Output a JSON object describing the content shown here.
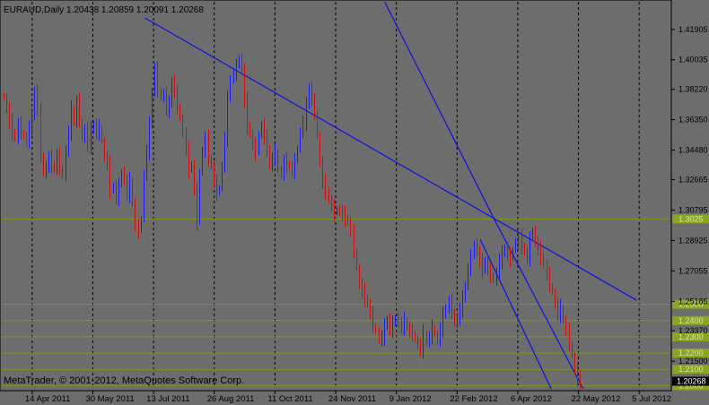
{
  "chart_data": {
    "type": "line",
    "header": "EURAUD,Daily  1.20438  1.20859  1.20091  1.20268",
    "symbol": "EURAUD",
    "timeframe": "Daily",
    "ohlc": {
      "open": 1.20438,
      "high": 1.20859,
      "low": 1.20091,
      "close": 1.20268
    },
    "copyright": "MetaTrader, © 2001-2012, MetaQuotes Software Corp.",
    "x_tick_labels": [
      "14 Apr 2011",
      "30 May 2011",
      "13 Jul 2011",
      "26 Aug 2011",
      "11 Oct 2011",
      "24 Nov 2011",
      "9 Jan 2012",
      "22 Feb 2012",
      "6 Apr 2012",
      "22 May 2012",
      "5 Jul 2012"
    ],
    "y_tick_labels": [
      "1.41905",
      "1.40035",
      "1.38220",
      "1.36350",
      "1.34480",
      "1.32665",
      "1.30795",
      "1.28925",
      "1.27055",
      "1.25185",
      "1.23370",
      "1.21500"
    ],
    "horizontal_levels": [
      1.3025,
      1.25,
      1.24,
      1.23,
      1.22,
      1.21,
      1.2
    ],
    "level_labels": [
      "1.3025",
      "1.2500",
      "1.2400",
      "1.2300",
      "1.2200",
      "1.2100",
      "1.2000"
    ],
    "current_price": "1.20268",
    "ylim": [
      1.198,
      1.436
    ],
    "series": [
      {
        "values": [
          1.377,
          1.37,
          1.362,
          1.356,
          1.352,
          1.361,
          1.356,
          1.353,
          1.35,
          1.359,
          1.365,
          1.382,
          1.369,
          1.342,
          1.33,
          1.335,
          1.34,
          1.336,
          1.333,
          1.342,
          1.334,
          1.328,
          1.345,
          1.356,
          1.37,
          1.362,
          1.375,
          1.363,
          1.352,
          1.358,
          1.348,
          1.357,
          1.361,
          1.355,
          1.359,
          1.35,
          1.34,
          1.336,
          1.32,
          1.323,
          1.315,
          1.323,
          1.332,
          1.326,
          1.318,
          1.326,
          1.312,
          1.298,
          1.295,
          1.303,
          1.33,
          1.344,
          1.36,
          1.381,
          1.395,
          1.382,
          1.377,
          1.38,
          1.37,
          1.373,
          1.388,
          1.38,
          1.372,
          1.364,
          1.355,
          1.345,
          1.333,
          1.336,
          1.32,
          1.3,
          1.332,
          1.344,
          1.352,
          1.34,
          1.335,
          1.325,
          1.318,
          1.322,
          1.335,
          1.352,
          1.376,
          1.389,
          1.392,
          1.396,
          1.402,
          1.394,
          1.375,
          1.36,
          1.354,
          1.348,
          1.343,
          1.355,
          1.36,
          1.352,
          1.346,
          1.335,
          1.34,
          1.344,
          1.332,
          1.33,
          1.338,
          1.336,
          1.335,
          1.332,
          1.338,
          1.346,
          1.356,
          1.362,
          1.372,
          1.384,
          1.375,
          1.368,
          1.353,
          1.337,
          1.325,
          1.32,
          1.314,
          1.31,
          1.306,
          1.308,
          1.307,
          1.305,
          1.303,
          1.3,
          1.295,
          1.283,
          1.272,
          1.262,
          1.258,
          1.254,
          1.25,
          1.244,
          1.237,
          1.233,
          1.228,
          1.23,
          1.236,
          1.241,
          1.234,
          1.238,
          1.242,
          1.238,
          1.236,
          1.24,
          1.236,
          1.233,
          1.232,
          1.228,
          1.225,
          1.222,
          1.232,
          1.227,
          1.23,
          1.236,
          1.231,
          1.228,
          1.235,
          1.243,
          1.248,
          1.252,
          1.246,
          1.238,
          1.241,
          1.247,
          1.253,
          1.262,
          1.272,
          1.279,
          1.288,
          1.282,
          1.276,
          1.271,
          1.277,
          1.271,
          1.268,
          1.264,
          1.27,
          1.277,
          1.281,
          1.285,
          1.28,
          1.278,
          1.284,
          1.288,
          1.291,
          1.286,
          1.282,
          1.278,
          1.29,
          1.296,
          1.288,
          1.284,
          1.28,
          1.274,
          1.268,
          1.262,
          1.257,
          1.25,
          1.244,
          1.248,
          1.24,
          1.234,
          1.226,
          1.218,
          1.21,
          1.204,
          1.203
        ]
      }
    ],
    "trend_lines": [
      {
        "from": [
          0.2146,
          1.426
        ],
        "to": [
          0.9506,
          1.2525
        ]
      },
      {
        "from": [
          0.5734,
          1.436
        ],
        "to": [
          0.7373,
          1.3025
        ]
      },
      {
        "from": [
          0.7373,
          1.3025
        ],
        "to": [
          0.8706,
          1.198
        ]
      },
      {
        "from": [
          0.7164,
          1.29
        ],
        "to": [
          0.8228,
          1.198
        ]
      }
    ]
  }
}
